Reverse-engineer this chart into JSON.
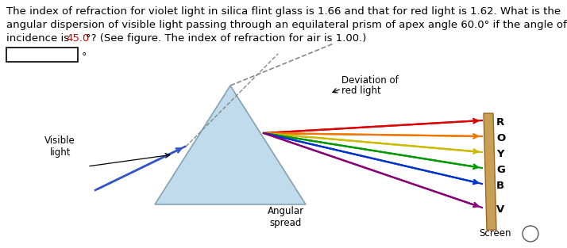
{
  "background_color": "#ffffff",
  "highlight_color": "#cc0000",
  "prism_color": "#b8d8ea",
  "prism_edge_color": "#7a9aaa",
  "ray_colors": [
    "#dd0000",
    "#ee7700",
    "#ccbb00",
    "#009900",
    "#0033cc",
    "#880077"
  ],
  "ray_labels": [
    "R",
    "O",
    "Y",
    "G",
    "B",
    "V"
  ],
  "screen_color": "#c8a055",
  "screen_edge_color": "#996622",
  "deviation_text_line1": "Deviation of",
  "deviation_text_line2": "red light",
  "visible_light_text": "Visible\nlight",
  "angular_spread_text": "Angular\nspread",
  "screen_text": "Screen",
  "line1": "The index of refraction for violet light in silica flint glass is 1.66 and that for red light is 1.62. What is the",
  "line2": "angular dispersion of visible light passing through an equilateral prism of apex angle 60.0° if the angle of",
  "line3_pre": "incidence is ",
  "line3_highlight": "45.0",
  "line3_post": "°? (See figure. The index of refraction for air is 1.00.)",
  "fontsize_text": 9.5,
  "fontsize_labels": 8.5
}
